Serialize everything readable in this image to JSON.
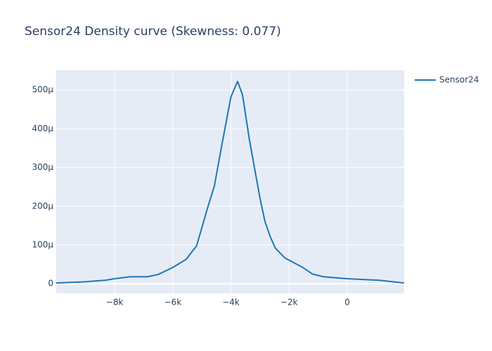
{
  "chart_data": {
    "type": "line",
    "title": "Sensor24 Density curve (Skewness: 0.077)",
    "x": [
      -10010,
      -9045,
      -8320,
      -8000,
      -7470,
      -6870,
      -6500,
      -6000,
      -5540,
      -5180,
      -4810,
      -4570,
      -4330,
      -4000,
      -3770,
      -3600,
      -3360,
      -3000,
      -2830,
      -2640,
      -2470,
      -2150,
      -1550,
      -1190,
      -820,
      0,
      1110,
      1960
    ],
    "series": [
      {
        "name": "Sensor24",
        "color": "#1f77b4",
        "values": [
          2e-06,
          5e-06,
          9e-06,
          1.3e-05,
          1.8e-05,
          1.8e-05,
          2.4e-05,
          4.2e-05,
          6.3e-05,
          9.8e-05,
          0.000194,
          0.000252,
          0.000351,
          0.000482,
          0.000522,
          0.000487,
          0.00037,
          0.000221,
          0.000161,
          0.00012,
          9.2e-05,
          6.7e-05,
          4.3e-05,
          2.5e-05,
          1.8e-05,
          1.3e-05,
          9e-06,
          2e-06
        ]
      }
    ],
    "xlim": [
      -10010,
      1960
    ],
    "xticks": [
      {
        "value": -8000,
        "label": "−8k"
      },
      {
        "value": -6000,
        "label": "−6k"
      },
      {
        "value": -4000,
        "label": "−4k"
      },
      {
        "value": -2000,
        "label": "−2k"
      },
      0
    ],
    "ylim": [
      -2.5e-05,
      0.000551
    ],
    "yticks": [
      0,
      {
        "value": 0.0001,
        "label": "100μ"
      },
      {
        "value": 0.0002,
        "label": "200μ"
      },
      {
        "value": 0.0003,
        "label": "300μ"
      },
      {
        "value": 0.0004,
        "label": "400μ"
      },
      {
        "value": 0.0005,
        "label": "500μ"
      }
    ],
    "grid": true
  }
}
